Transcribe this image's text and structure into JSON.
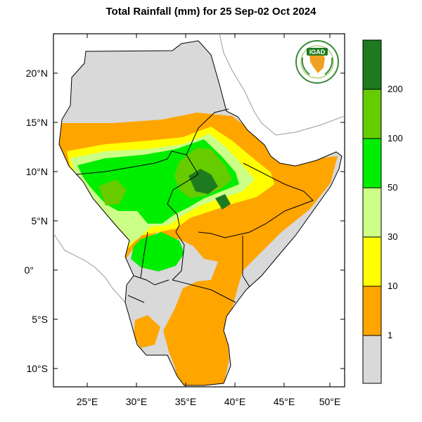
{
  "title": "Total Rainfall (mm) for 25 Sep-02 Oct 2024",
  "logo": {
    "text": "IGAD"
  },
  "axes": {
    "lat_ticks": [
      "20°N",
      "15°N",
      "10°N",
      "5°N",
      "0°",
      "5°S",
      "10°S"
    ],
    "lon_ticks": [
      "25°E",
      "30°E",
      "35°E",
      "40°E",
      "45°E",
      "50°E"
    ]
  },
  "colorbar": {
    "labels": [
      "200",
      "100",
      "50",
      "30",
      "10",
      "1"
    ],
    "colors": [
      "#1e7a1e",
      "#66cc00",
      "#00ee00",
      "#ccff88",
      "#ffff00",
      "#ffa500",
      "#d9d9d9"
    ]
  },
  "map_colors": {
    "land_no_rain": "#d9d9d9",
    "light": "#ffa500",
    "low": "#ffff00",
    "mid_low": "#ccff88",
    "mid": "#00ee00",
    "high": "#66cc00",
    "extreme": "#1e7a1e",
    "border": "#000000",
    "outside_coast": "#9a9a9a"
  }
}
